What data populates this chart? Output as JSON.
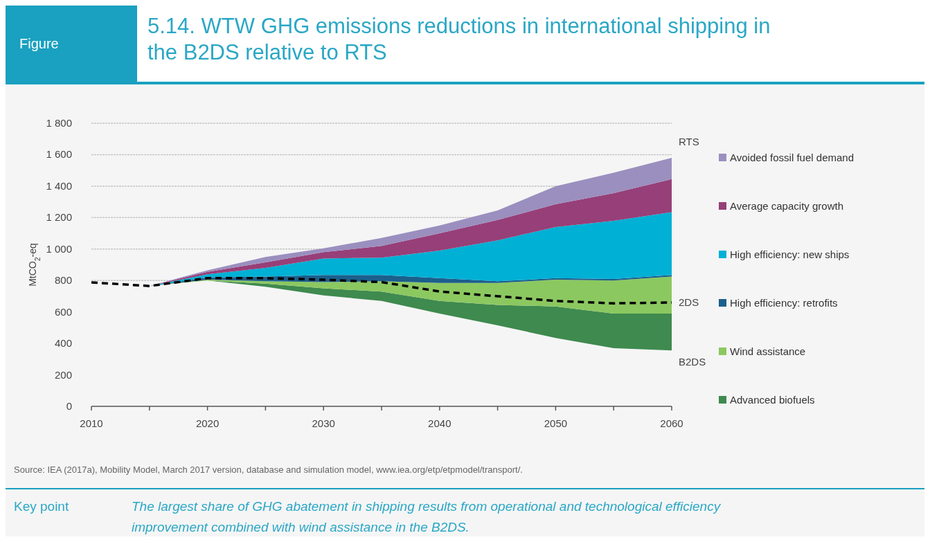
{
  "chart_data": {
    "type": "area",
    "stacked": true,
    "title": "5.14. WTW GHG emissions reductions in international shipping in the B2DS relative to RTS",
    "ylabel": "MtCO$_{2}$-eq",
    "x": [
      2010,
      2015,
      2020,
      2025,
      2030,
      2035,
      2040,
      2045,
      2050,
      2055,
      2060
    ],
    "xlim": [
      2010,
      2060
    ],
    "xticks": [
      2010,
      {
        "value": 2015,
        "label": null
      },
      2020,
      {
        "value": 2025,
        "label": null
      },
      2030,
      {
        "value": 2035,
        "label": null
      },
      2040,
      {
        "value": 2045,
        "label": null
      },
      2050,
      {
        "value": 2055,
        "label": null
      },
      2060
    ],
    "ylim": [
      0,
      1800
    ],
    "yticks": [
      0,
      200,
      400,
      600,
      800,
      {
        "value": 1000,
        "label": "1 000"
      },
      {
        "value": 1200,
        "label": "1 200"
      },
      {
        "value": 1400,
        "label": "1 400"
      },
      {
        "value": 1600,
        "label": "1 600"
      },
      {
        "value": 1800,
        "label": "1 800"
      }
    ],
    "grid": "y",
    "legend": "right",
    "series": [
      {
        "color": "#f5f5f5",
        "values": [
          785,
          765,
          800,
          760,
          705,
          670,
          590,
          515,
          435,
          370,
          355
        ]
      },
      {
        "name": "Advanced biofuels",
        "color": "#3f8a4f",
        "values": [
          0,
          0,
          0,
          20,
          45,
          60,
          80,
          130,
          200,
          220,
          235
        ]
      },
      {
        "name": "Wind assistance",
        "color": "#8cc860",
        "values": [
          0,
          0,
          5,
          15,
          40,
          65,
          115,
          140,
          170,
          210,
          235
        ]
      },
      {
        "name": "High efficiency: retrofits",
        "color": "#1b5f8c",
        "values": [
          0,
          0,
          15,
          30,
          45,
          40,
          30,
          10,
          10,
          10,
          10
        ]
      },
      {
        "name": "High efficiency: new ships",
        "color": "#00b0d5",
        "values": [
          0,
          0,
          20,
          55,
          105,
          110,
          175,
          260,
          325,
          370,
          400
        ]
      },
      {
        "name": "Average capacity growth",
        "color": "#973f78",
        "values": [
          0,
          0,
          15,
          35,
          40,
          75,
          110,
          130,
          145,
          175,
          210
        ]
      },
      {
        "name": "Avoided  fossil fuel demand",
        "color": "#9b8fbf",
        "values": [
          0,
          0,
          10,
          35,
          25,
          50,
          50,
          60,
          115,
          130,
          135
        ]
      },
      {
        "type": "line",
        "color": "#000000",
        "line_style": "dashed",
        "values": [
          788,
          765,
          815,
          815,
          805,
          790,
          730,
          700,
          670,
          655,
          660
        ]
      }
    ],
    "annotations": [
      "RTS",
      "2DS",
      "B2DS",
      "Figure",
      "Source: IEA (2017a), Mobility Model, March 2017 version, database and simulation model, www.iea.org/etp/etpmodel/transport/.",
      "Key point",
      "The largest share of GHG abatement in shipping results from operational and technological efficiency improvement combined with wind assistance in the B2DS."
    ]
  }
}
